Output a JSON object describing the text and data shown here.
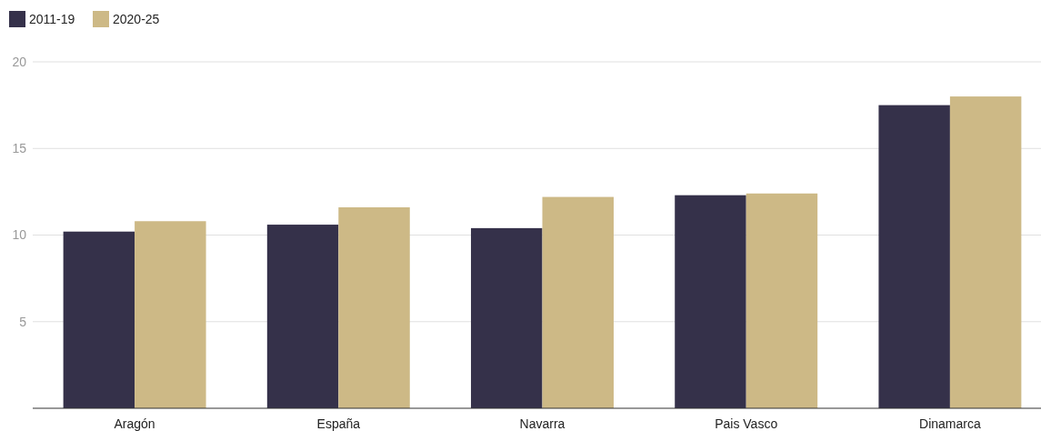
{
  "chart_data": {
    "type": "bar",
    "categories": [
      "Aragón",
      "España",
      "Navarra",
      "Pais Vasco",
      "Dinamarca"
    ],
    "series": [
      {
        "name": "2011-19",
        "color": "#35314a",
        "values": [
          10.2,
          10.6,
          10.4,
          12.3,
          17.5
        ]
      },
      {
        "name": "2020-25",
        "color": "#cdb986",
        "values": [
          10.8,
          11.6,
          12.2,
          12.4,
          18.0
        ]
      }
    ],
    "ylim": [
      0,
      20
    ],
    "yticks": [
      {
        "value": 0,
        "label": null
      },
      5,
      10,
      15,
      20
    ],
    "grid": "y",
    "legend": "top left"
  }
}
